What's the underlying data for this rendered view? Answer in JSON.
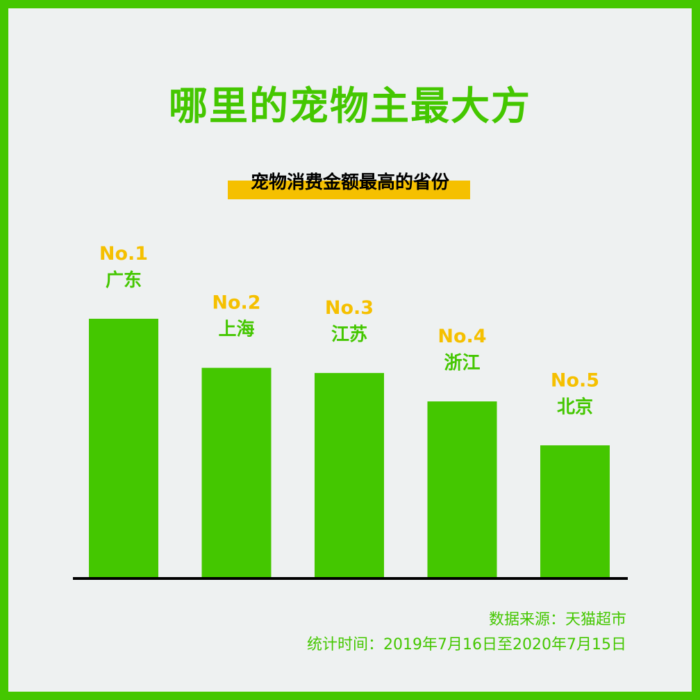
{
  "title": "哪里的宠物主最大方",
  "subtitle": "宠物消费金额最高的省份",
  "footer": {
    "source": "数据来源：天猫超市",
    "period": "统计时间：2019年7月16日至2020年7月15日"
  },
  "colors": {
    "accent": "#44c700",
    "rank": "#f5c000",
    "axis": "#000000",
    "background": "#eef1f1"
  },
  "chart_data": {
    "type": "bar",
    "categories": [
      "广东",
      "上海",
      "江苏",
      "浙江",
      "北京"
    ],
    "ranks": [
      "No.1",
      "No.2",
      "No.3",
      "No.4",
      "No.5"
    ],
    "values": [
      100,
      81,
      79,
      68,
      51
    ],
    "title": "哪里的宠物主最大方",
    "subtitle": "宠物消费金额最高的省份",
    "xlabel": "",
    "ylabel": "",
    "grid": false,
    "legend": "none"
  }
}
